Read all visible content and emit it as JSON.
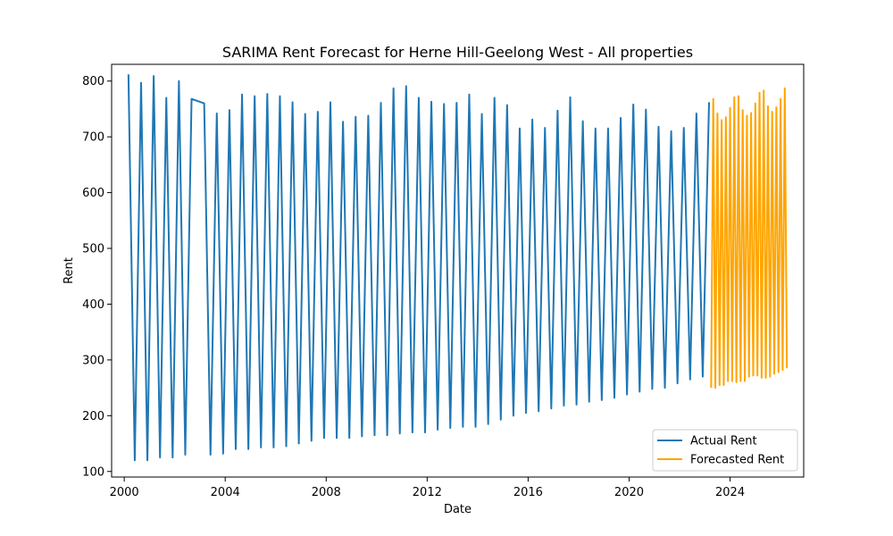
{
  "chart_data": {
    "type": "line",
    "title": "SARIMA Rent Forecast for Herne Hill-Geelong West - All properties",
    "xlabel": "Date",
    "ylabel": "Rent",
    "xlim": [
      "1999-07",
      "2026-12"
    ],
    "ylim": [
      90,
      830
    ],
    "xticks": [
      "2000",
      "2004",
      "2008",
      "2012",
      "2016",
      "2020",
      "2024"
    ],
    "yticks": [
      100,
      200,
      300,
      400,
      500,
      600,
      700,
      800
    ],
    "grid": false,
    "legend_position": "bottom-right",
    "series": [
      {
        "name": "Actual Rent",
        "color": "#1f77b4",
        "x": [
          "2000-03",
          "2000-06",
          "2000-09",
          "2000-12",
          "2001-03",
          "2001-06",
          "2001-09",
          "2001-12",
          "2002-03",
          "2002-06",
          "2002-09",
          "2003-03",
          "2003-06",
          "2003-09",
          "2003-12",
          "2004-03",
          "2004-06",
          "2004-09",
          "2004-12",
          "2005-03",
          "2005-06",
          "2005-09",
          "2005-12",
          "2006-03",
          "2006-06",
          "2006-09",
          "2006-12",
          "2007-03",
          "2007-06",
          "2007-09",
          "2007-12",
          "2008-03",
          "2008-06",
          "2008-09",
          "2008-12",
          "2009-03",
          "2009-06",
          "2009-09",
          "2009-12",
          "2010-03",
          "2010-06",
          "2010-09",
          "2010-12",
          "2011-03",
          "2011-06",
          "2011-09",
          "2011-12",
          "2012-03",
          "2012-06",
          "2012-09",
          "2012-12",
          "2013-03",
          "2013-06",
          "2013-09",
          "2013-12",
          "2014-03",
          "2014-06",
          "2014-09",
          "2014-12",
          "2015-03",
          "2015-06",
          "2015-09",
          "2015-12",
          "2016-03",
          "2016-06",
          "2016-09",
          "2016-12",
          "2017-03",
          "2017-06",
          "2017-09",
          "2017-12",
          "2018-03",
          "2018-06",
          "2018-09",
          "2018-12",
          "2019-03",
          "2019-06",
          "2019-09",
          "2019-12",
          "2020-03",
          "2020-06",
          "2020-09",
          "2020-12",
          "2021-03",
          "2021-06",
          "2021-09",
          "2021-12",
          "2022-03",
          "2022-06",
          "2022-09",
          "2022-12",
          "2023-03"
        ],
        "y": [
          812,
          120,
          797,
          120,
          809,
          125,
          770,
          125,
          800,
          130,
          768,
          760,
          130,
          742,
          132,
          748,
          140,
          776,
          140,
          773,
          143,
          777,
          143,
          773,
          145,
          762,
          150,
          741,
          155,
          745,
          160,
          762,
          160,
          727,
          160,
          736,
          163,
          738,
          165,
          761,
          165,
          787,
          168,
          791,
          170,
          770,
          170,
          763,
          175,
          759,
          178,
          761,
          180,
          776,
          180,
          741,
          185,
          770,
          193,
          757,
          200,
          715,
          205,
          731,
          208,
          716,
          213,
          747,
          218,
          771,
          220,
          728,
          225,
          715,
          228,
          715,
          232,
          734,
          238,
          758,
          243,
          749,
          248,
          718,
          250,
          710,
          258,
          716,
          265,
          742,
          270,
          762
        ]
      },
      {
        "name": "Forecasted Rent",
        "color": "#ffa500",
        "x": [
          "2023-04",
          "2023-05",
          "2023-06",
          "2023-07",
          "2023-08",
          "2023-09",
          "2023-10",
          "2023-11",
          "2023-12",
          "2024-01",
          "2024-02",
          "2024-03",
          "2024-04",
          "2024-05",
          "2024-06",
          "2024-07",
          "2024-08",
          "2024-09",
          "2024-10",
          "2024-11",
          "2024-12",
          "2025-01",
          "2025-02",
          "2025-03",
          "2025-04",
          "2025-05",
          "2025-06",
          "2025-07",
          "2025-08",
          "2025-09",
          "2025-10",
          "2025-11",
          "2025-12",
          "2026-01",
          "2026-02",
          "2026-03",
          "2026-04"
        ],
        "y": [
          250,
          768,
          250,
          742,
          255,
          730,
          255,
          735,
          262,
          752,
          262,
          771,
          260,
          773,
          262,
          748,
          262,
          738,
          270,
          743,
          272,
          760,
          272,
          779,
          268,
          783,
          268,
          755,
          270,
          745,
          275,
          753,
          278,
          768,
          282,
          787,
          285
        ]
      }
    ]
  }
}
